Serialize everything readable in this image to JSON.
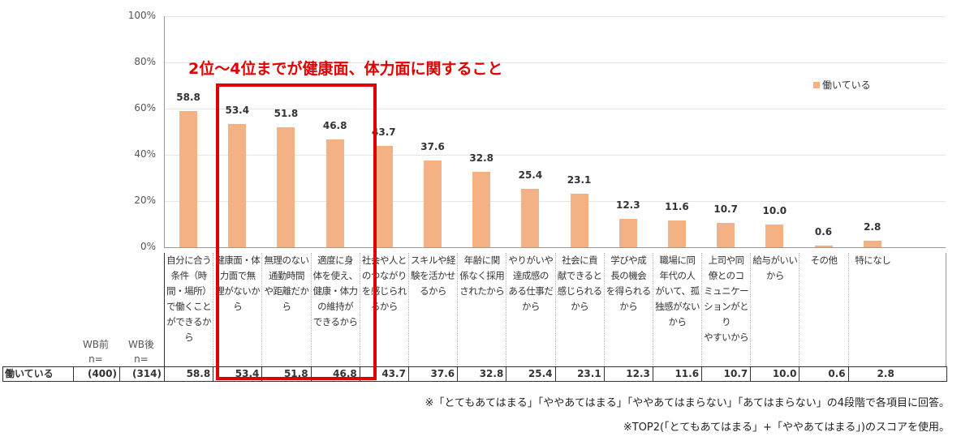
{
  "annotation": "2位～4位までが健康面、体力面に関すること",
  "colors": {
    "bar": "#f4b183",
    "highlight": "#e00000",
    "annotation": "#e00000"
  },
  "chart_data": {
    "type": "bar",
    "yticks": [
      "0%",
      "20%",
      "40%",
      "60%",
      "80%",
      "100%"
    ],
    "ylim": [
      0,
      100
    ],
    "legend": {
      "position": "top-right",
      "entries": [
        "働いている"
      ]
    },
    "categories": [
      "自分に合う条件（時間・場所）で働くことができるから",
      "健康面・体力面で無理がないから",
      "無理のない通勤時間や距離だから",
      "適度に身体を使え、健康・体力の維持ができるから",
      "社会や人とのつながりを感じられるから",
      "スキルや経験を活かせるから",
      "年齢に関係なく採用されたから",
      "やりがいや達成感のある仕事だから",
      "社会に貢献できると感じられるから",
      "学びや成長の機会を得られるから",
      "職場に同年代の人がいて、孤独感がないから",
      "上司や同僚とのコミュニケーションがとりやすいから",
      "給与がいいから",
      "その他",
      "特になし"
    ],
    "series": [
      {
        "name": "働いている",
        "values": [
          58.8,
          53.4,
          51.8,
          46.8,
          43.7,
          37.6,
          32.8,
          25.4,
          23.1,
          12.3,
          11.6,
          10.7,
          10.0,
          0.6,
          2.8
        ]
      }
    ],
    "data_labels": [
      "58.8",
      "53.4",
      "51.8",
      "46.8",
      "43.7",
      "37.6",
      "32.8",
      "25.4",
      "23.1",
      "12.3",
      "11.6",
      "10.7",
      "10.0",
      "0.6",
      "2.8"
    ]
  },
  "table": {
    "header_wb_before": [
      "WB前",
      "n="
    ],
    "header_wb_after": [
      "WB後",
      "n="
    ],
    "row_label": "働いている",
    "n_before": "(400)",
    "n_after": "(314)",
    "header_lines": [
      [
        "自分に合う",
        "条件（時",
        "間・場所）",
        "で働くこと",
        "ができるか",
        "ら"
      ],
      [
        "健康面・体",
        "力面で無",
        "理がないか",
        "ら"
      ],
      [
        "無理のない",
        "通勤時間",
        "や距離だか",
        "ら"
      ],
      [
        "適度に身",
        "体を使え、",
        "健康・体力",
        "の維持が",
        "できるから"
      ],
      [
        "社会や人と",
        "のつながり",
        "を感じられ",
        "るから"
      ],
      [
        "スキルや経",
        "験を活かせ",
        "るから"
      ],
      [
        "年齢に関",
        "係なく採用",
        "されたから"
      ],
      [
        "やりがいや",
        "達成感の",
        "ある仕事だ",
        "から"
      ],
      [
        "社会に貢",
        "献できると",
        "感じられる",
        "から"
      ],
      [
        "学びや成",
        "長の機会",
        "を得られる",
        "から"
      ],
      [
        "職場に同",
        "年代の人",
        "がいて、孤",
        "独感がない",
        "から"
      ],
      [
        "上司や同",
        "僚とのコ",
        "ミュニケー",
        "ションがとり",
        "やすいから"
      ],
      [
        "給与がいい",
        "から"
      ],
      [
        "その他"
      ],
      [
        "特になし"
      ]
    ]
  },
  "notes": [
    "※「とてもあてはまる」「ややあてはまる」「ややあてはまらない」「あてはまらない」の4段階で各項目に回答。",
    "※TOP2(「とてもあてはまる」+「ややあてはまる」)のスコアを使用。"
  ]
}
